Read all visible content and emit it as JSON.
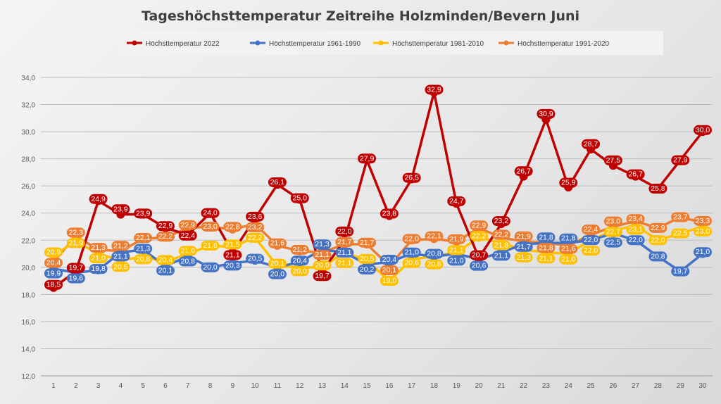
{
  "chart_data": {
    "type": "line",
    "title": "Tageshöchsttemperatur Zeitreihe Holzminden/Bevern Juni",
    "xlabel": "",
    "ylabel": "",
    "x": [
      1,
      2,
      3,
      4,
      5,
      6,
      7,
      8,
      9,
      10,
      11,
      12,
      13,
      14,
      15,
      16,
      17,
      18,
      19,
      20,
      21,
      22,
      23,
      24,
      25,
      26,
      27,
      28,
      29,
      30
    ],
    "ylim": [
      12,
      34
    ],
    "yticks": [
      "12,0",
      "14,0",
      "16,0",
      "18,0",
      "20,0",
      "22,0",
      "24,0",
      "26,0",
      "28,0",
      "30,0",
      "32,0",
      "34,0"
    ],
    "grid": true,
    "legend_position": "top",
    "series": [
      {
        "name": "Höchsttemperatur 2022",
        "color": "#C00000",
        "values": [
          18.5,
          19.7,
          24.9,
          23.9,
          23.9,
          22.9,
          22.4,
          24.0,
          21.1,
          23.6,
          26.1,
          25.0,
          19.7,
          22.0,
          27.9,
          23.8,
          26.5,
          32.9,
          24.7,
          20.7,
          23.2,
          26.7,
          30.9,
          25.9,
          28.7,
          27.5,
          26.7,
          25.8,
          27.9,
          30.0
        ]
      },
      {
        "name": "Höchsttemperatur 1961-1990",
        "color": "#4472C4",
        "values": [
          19.9,
          19.6,
          19.8,
          21.1,
          21.3,
          20.1,
          20.8,
          20.0,
          20.3,
          20.5,
          20.0,
          20.4,
          21.3,
          21.1,
          20.2,
          20.4,
          21.0,
          20.8,
          21.0,
          20.6,
          21.1,
          21.7,
          21.8,
          21.8,
          22.0,
          22.5,
          22.0,
          20.8,
          19.7,
          21.0
        ]
      },
      {
        "name": "Höchsttemperatur 1981-2010",
        "color": "#FFC000",
        "values": [
          20.9,
          21.9,
          21.0,
          20.5,
          20.8,
          20.4,
          21.0,
          21.6,
          21.5,
          22.2,
          20.1,
          20.0,
          20.0,
          21.1,
          20.5,
          19.0,
          20.6,
          20.8,
          21.1,
          22.2,
          21.8,
          21.3,
          21.1,
          21.0,
          22.0,
          22.7,
          23.1,
          22.0,
          22.5,
          23.0
        ]
      },
      {
        "name": "Höchsttemperatur 1991-2020",
        "color": "#ED7D31",
        "values": [
          20.4,
          22.3,
          21.3,
          21.2,
          22.1,
          22.2,
          22.9,
          23.0,
          22.8,
          23.2,
          21.6,
          21.2,
          21.1,
          21.7,
          21.7,
          20.1,
          22.0,
          22.1,
          21.9,
          22.9,
          22.2,
          21.9,
          21.8,
          21.6,
          22.4,
          23.0,
          23.4,
          22.9,
          23.7,
          23.3
        ]
      }
    ]
  }
}
